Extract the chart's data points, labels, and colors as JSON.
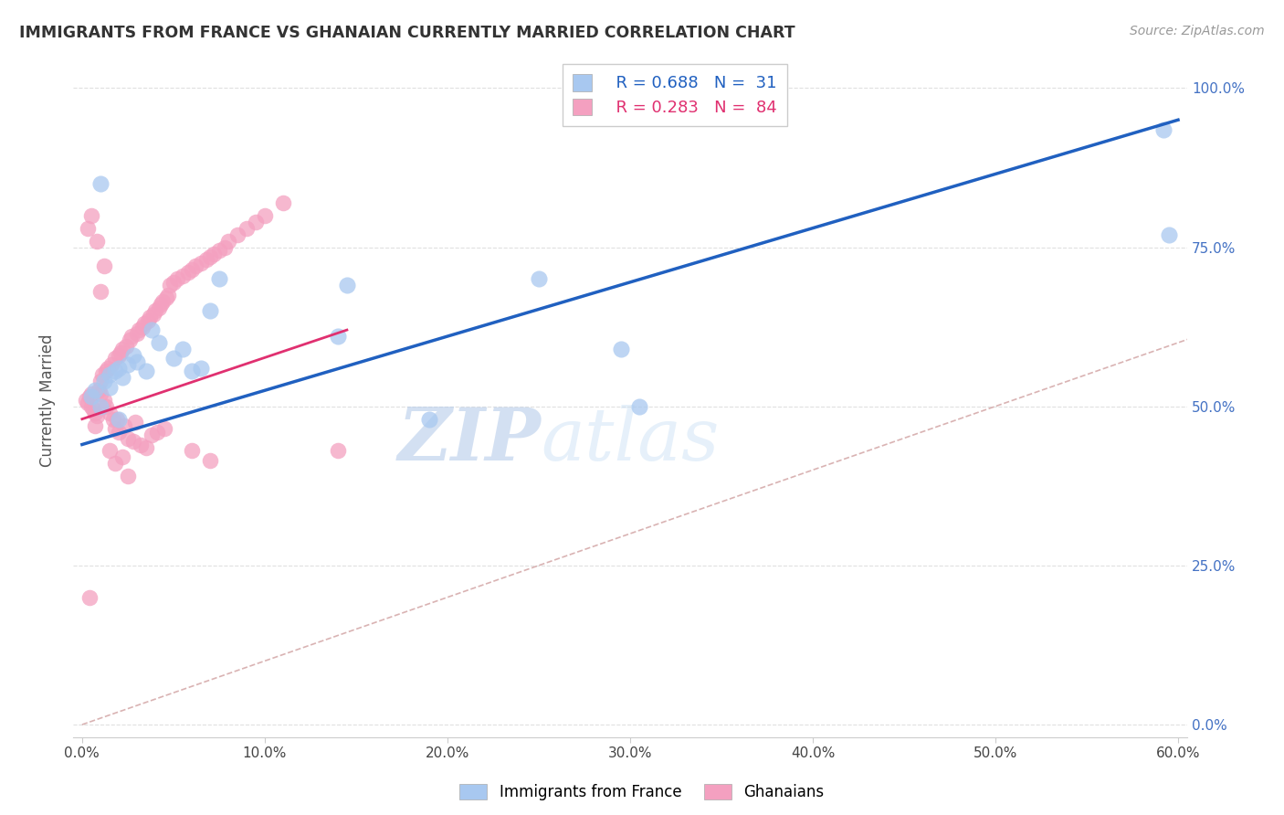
{
  "title": "IMMIGRANTS FROM FRANCE VS GHANAIAN CURRENTLY MARRIED CORRELATION CHART",
  "source": "Source: ZipAtlas.com",
  "ylabel_label": "Currently Married",
  "xlim": [
    0.0,
    0.6
  ],
  "ylim": [
    0.0,
    1.0
  ],
  "blue_R": "0.688",
  "blue_N": "31",
  "pink_R": "0.283",
  "pink_N": "84",
  "blue_color": "#a8c8f0",
  "pink_color": "#f4a0c0",
  "blue_line_color": "#2060c0",
  "pink_line_color": "#e03070",
  "diagonal_color": "#d0a0a0",
  "blue_line_x": [
    0.0,
    0.6
  ],
  "blue_line_y": [
    0.44,
    0.95
  ],
  "pink_line_x": [
    0.0,
    0.145
  ],
  "pink_line_y": [
    0.48,
    0.62
  ],
  "blue_scatter_x": [
    0.005,
    0.007,
    0.01,
    0.012,
    0.015,
    0.015,
    0.018,
    0.02,
    0.022,
    0.025,
    0.028,
    0.03,
    0.035,
    0.038,
    0.042,
    0.05,
    0.055,
    0.06,
    0.065,
    0.07,
    0.075,
    0.14,
    0.145,
    0.19,
    0.25,
    0.295,
    0.305,
    0.592,
    0.595,
    0.01,
    0.02
  ],
  "blue_scatter_y": [
    0.515,
    0.525,
    0.5,
    0.54,
    0.55,
    0.53,
    0.555,
    0.56,
    0.545,
    0.565,
    0.58,
    0.57,
    0.555,
    0.62,
    0.6,
    0.575,
    0.59,
    0.555,
    0.56,
    0.65,
    0.7,
    0.61,
    0.69,
    0.48,
    0.7,
    0.59,
    0.5,
    0.935,
    0.77,
    0.85,
    0.48
  ],
  "pink_scatter_x": [
    0.002,
    0.003,
    0.004,
    0.005,
    0.005,
    0.006,
    0.007,
    0.008,
    0.009,
    0.01,
    0.01,
    0.011,
    0.012,
    0.013,
    0.013,
    0.014,
    0.015,
    0.016,
    0.017,
    0.018,
    0.018,
    0.019,
    0.02,
    0.02,
    0.021,
    0.022,
    0.023,
    0.024,
    0.025,
    0.026,
    0.027,
    0.028,
    0.029,
    0.03,
    0.031,
    0.032,
    0.033,
    0.034,
    0.035,
    0.036,
    0.037,
    0.038,
    0.039,
    0.04,
    0.041,
    0.042,
    0.043,
    0.044,
    0.045,
    0.046,
    0.047,
    0.048,
    0.05,
    0.052,
    0.055,
    0.058,
    0.06,
    0.062,
    0.065,
    0.068,
    0.07,
    0.072,
    0.075,
    0.078,
    0.08,
    0.085,
    0.09,
    0.095,
    0.1,
    0.11,
    0.003,
    0.005,
    0.008,
    0.01,
    0.012,
    0.015,
    0.018,
    0.022,
    0.025,
    0.06,
    0.07,
    0.14,
    0.004,
    0.007
  ],
  "pink_scatter_y": [
    0.51,
    0.505,
    0.515,
    0.52,
    0.5,
    0.495,
    0.49,
    0.485,
    0.525,
    0.54,
    0.52,
    0.55,
    0.51,
    0.555,
    0.5,
    0.56,
    0.49,
    0.565,
    0.48,
    0.575,
    0.465,
    0.48,
    0.58,
    0.46,
    0.585,
    0.59,
    0.47,
    0.595,
    0.45,
    0.605,
    0.61,
    0.445,
    0.475,
    0.615,
    0.62,
    0.44,
    0.625,
    0.63,
    0.435,
    0.635,
    0.64,
    0.455,
    0.645,
    0.65,
    0.46,
    0.655,
    0.66,
    0.665,
    0.465,
    0.67,
    0.675,
    0.69,
    0.695,
    0.7,
    0.705,
    0.71,
    0.715,
    0.72,
    0.725,
    0.73,
    0.735,
    0.74,
    0.745,
    0.75,
    0.76,
    0.77,
    0.78,
    0.79,
    0.8,
    0.82,
    0.78,
    0.8,
    0.76,
    0.68,
    0.72,
    0.43,
    0.41,
    0.42,
    0.39,
    0.43,
    0.415,
    0.43,
    0.2,
    0.47
  ],
  "watermark_zip": "ZIP",
  "watermark_atlas": "atlas",
  "background_color": "#ffffff",
  "grid_color": "#e0e0e0"
}
